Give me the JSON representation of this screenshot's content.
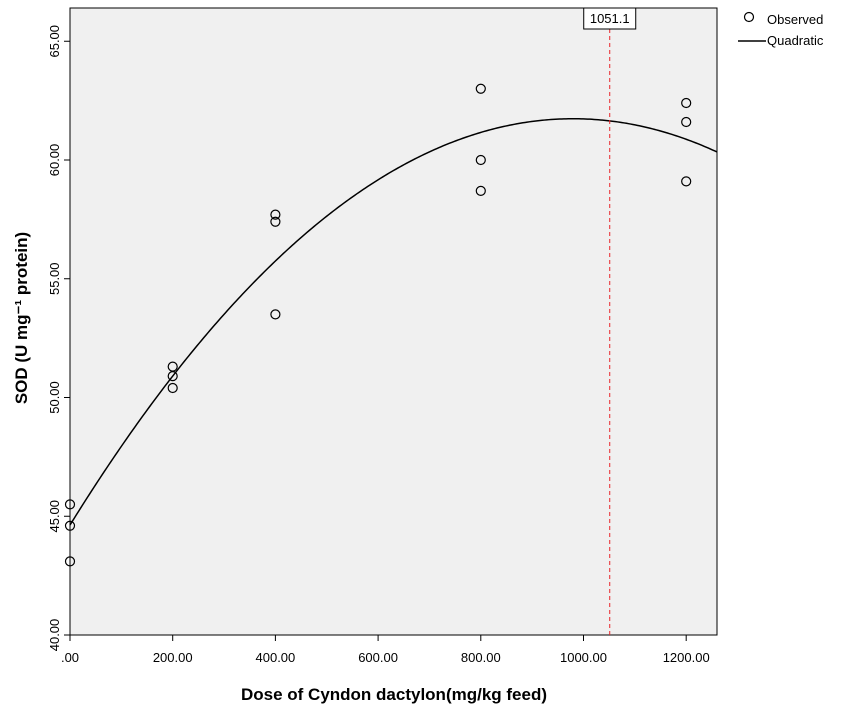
{
  "chart_data": {
    "type": "scatter",
    "xlabel": "Dose of Cyndon dactylon(mg/kg feed)",
    "ylabel": "SOD (U mg⁻¹ protein)",
    "xlim": [
      0,
      1260
    ],
    "ylim": [
      40,
      66.4
    ],
    "x_ticks": [
      0,
      200,
      400,
      600,
      800,
      1000,
      1200
    ],
    "x_tick_labels": [
      ".00",
      "200.00",
      "400.00",
      "600.00",
      "800.00",
      "1000.00",
      "1200.00"
    ],
    "y_ticks": [
      40,
      45,
      50,
      55,
      60,
      65
    ],
    "y_tick_labels": [
      "40.00",
      "45.00",
      "50.00",
      "55.00",
      "60.00",
      "65.00"
    ],
    "series": [
      {
        "name": "Observed",
        "kind": "points",
        "x": [
          0,
          0,
          0,
          200,
          200,
          200,
          400,
          400,
          400,
          800,
          800,
          800,
          1200,
          1200,
          1200
        ],
        "y": [
          45.5,
          44.6,
          43.1,
          51.3,
          50.9,
          50.4,
          57.7,
          57.4,
          53.5,
          63.0,
          60.0,
          58.7,
          62.4,
          61.6,
          59.1
        ]
      },
      {
        "name": "Quadratic",
        "kind": "curve",
        "coefficients": {
          "a": 44.63,
          "b": 0.03492,
          "c": -1.782e-05
        }
      }
    ],
    "reference_line": {
      "x": 1051.1,
      "label": "1051.1",
      "color": "#e8252b",
      "style": "dashed"
    },
    "plot_background": "#f0f0f0",
    "grid": false,
    "legend_position": "top-right"
  }
}
